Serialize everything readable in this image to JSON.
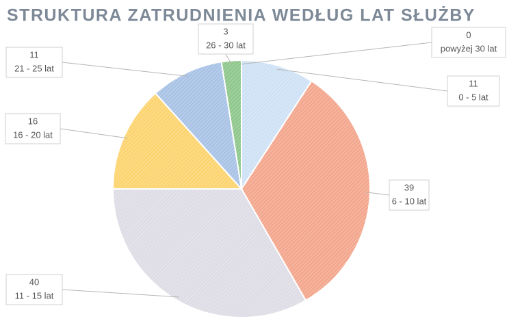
{
  "chart_data": {
    "type": "pie",
    "title": "STRUKTURA ZATRUDNIENIA WEDŁUG LAT SŁUŻBY",
    "categories": [
      "0 - 5 lat",
      "6 - 10 lat",
      "11 - 15 lat",
      "16 - 20 lat",
      "21 - 25 lat",
      "26 - 30 lat",
      "powyżej 30 lat"
    ],
    "values": [
      11,
      39,
      40,
      16,
      11,
      3,
      0
    ],
    "colors": [
      "#cfe2f5",
      "#f3a78e",
      "#dedde6",
      "#fcd470",
      "#a9c3e6",
      "#8fc78c",
      "#c8c8c8"
    ]
  }
}
